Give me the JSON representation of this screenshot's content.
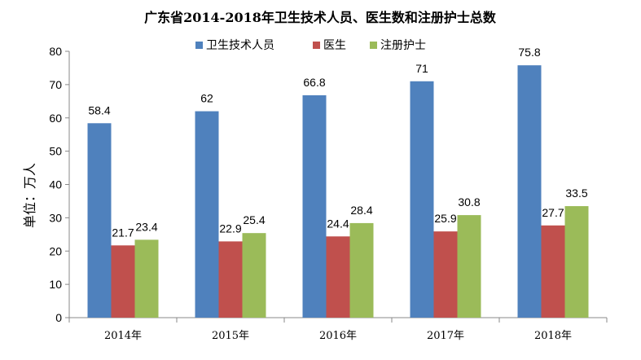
{
  "chart_data": {
    "type": "bar",
    "title": "广东省2014-2018年卫生技术人员、医生数和注册护士总数",
    "xlabel": "",
    "ylabel": "单位：万人",
    "ylim": [
      0,
      80
    ],
    "yticks": [
      0,
      10,
      20,
      30,
      40,
      50,
      60,
      70,
      80
    ],
    "grid": false,
    "legend_position": "top",
    "categories": [
      "2014年",
      "2015年",
      "2016年",
      "2017年",
      "2018年"
    ],
    "series": [
      {
        "name": "卫生技术人员",
        "color": "#4f81bd",
        "values": [
          58.4,
          62,
          66.8,
          71,
          75.8
        ]
      },
      {
        "name": "医生",
        "color": "#c0504d",
        "values": [
          21.7,
          22.9,
          24.4,
          25.9,
          27.7
        ]
      },
      {
        "name": "注册护士",
        "color": "#9bbb59",
        "values": [
          23.4,
          25.4,
          28.4,
          30.8,
          33.5
        ]
      }
    ]
  }
}
